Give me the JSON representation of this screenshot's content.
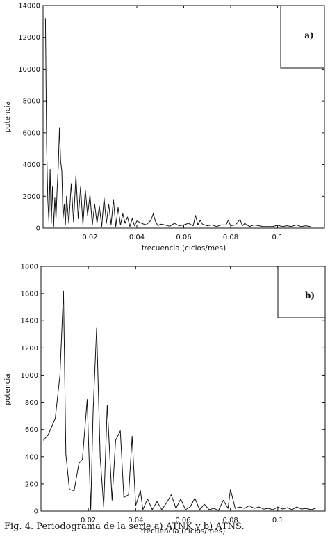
{
  "chart_data": [
    {
      "type": "line",
      "panel_label": "a)",
      "xlabel": "frecuencia (ciclos/mes)",
      "ylabel": "potencia",
      "xlim": [
        0,
        0.12
      ],
      "ylim": [
        0,
        14000
      ],
      "xticks": [
        0.02,
        0.04,
        0.06,
        0.08,
        0.1
      ],
      "xtick_labels": [
        "0.02",
        "0.04",
        "0.06",
        "0.08",
        "0.1"
      ],
      "yticks": [
        0,
        2000,
        4000,
        6000,
        8000,
        10000,
        12000,
        14000
      ],
      "ytick_labels": [
        "0",
        "2000",
        "4000",
        "6000",
        "8000",
        "10000",
        "12000",
        "14000"
      ],
      "grid": false,
      "legend": "top-right box",
      "series": [
        {
          "x": [
            0.001,
            0.0015,
            0.002,
            0.0025,
            0.003,
            0.0035,
            0.004,
            0.0045,
            0.005,
            0.0055,
            0.006,
            0.0065,
            0.007,
            0.0075,
            0.008,
            0.0085,
            0.009,
            0.0095,
            0.01,
            0.011,
            0.012,
            0.013,
            0.014,
            0.015,
            0.016,
            0.017,
            0.018,
            0.019,
            0.02,
            0.021,
            0.022,
            0.023,
            0.024,
            0.025,
            0.026,
            0.027,
            0.028,
            0.029,
            0.03,
            0.031,
            0.032,
            0.033,
            0.034,
            0.035,
            0.036,
            0.037,
            0.038,
            0.039,
            0.04,
            0.042,
            0.044,
            0.046,
            0.047,
            0.048,
            0.049,
            0.05,
            0.052,
            0.054,
            0.056,
            0.058,
            0.06,
            0.062,
            0.064,
            0.065,
            0.066,
            0.067,
            0.068,
            0.07,
            0.072,
            0.074,
            0.076,
            0.078,
            0.079,
            0.08,
            0.082,
            0.084,
            0.085,
            0.086,
            0.088,
            0.09,
            0.092,
            0.094,
            0.096,
            0.098,
            0.1,
            0.102,
            0.104,
            0.106,
            0.108,
            0.11,
            0.112,
            0.114
          ],
          "y": [
            13200,
            5200,
            1800,
            400,
            3700,
            300,
            2600,
            100,
            1900,
            600,
            2500,
            3900,
            6300,
            4200,
            3600,
            600,
            1500,
            200,
            2000,
            300,
            2800,
            400,
            3300,
            600,
            2600,
            200,
            2400,
            800,
            2100,
            200,
            1500,
            300,
            1400,
            100,
            1900,
            300,
            1500,
            200,
            1800,
            100,
            1300,
            200,
            900,
            300,
            700,
            100,
            600,
            150,
            450,
            300,
            200,
            500,
            900,
            400,
            150,
            250,
            200,
            120,
            300,
            150,
            200,
            300,
            150,
            800,
            200,
            500,
            250,
            150,
            200,
            100,
            200,
            200,
            500,
            150,
            200,
            550,
            150,
            300,
            100,
            200,
            150,
            100,
            100,
            100,
            180,
            100,
            150,
            100,
            200,
            100,
            150,
            100
          ]
        }
      ]
    },
    {
      "type": "line",
      "panel_label": "b)",
      "xlabel": "frecuencia (ciclos/mes)",
      "ylabel": "potencia",
      "xlim": [
        0,
        0.12
      ],
      "ylim": [
        0,
        1800
      ],
      "xticks": [
        0.02,
        0.04,
        0.06,
        0.08,
        0.1
      ],
      "xtick_labels": [
        "0.02",
        "0.04",
        "0.06",
        "0.08",
        "0.1"
      ],
      "yticks": [
        0,
        200,
        400,
        600,
        800,
        1000,
        1200,
        1400,
        1600,
        1800
      ],
      "ytick_labels": [
        "0",
        "200",
        "400",
        "600",
        "800",
        "1000",
        "1200",
        "1400",
        "1600",
        "1800"
      ],
      "grid": false,
      "legend": "top-right box",
      "series": [
        {
          "x": [
            0.001,
            0.003,
            0.006,
            0.008,
            0.0095,
            0.0105,
            0.012,
            0.014,
            0.016,
            0.0175,
            0.0195,
            0.021,
            0.022,
            0.0235,
            0.025,
            0.0265,
            0.028,
            0.03,
            0.0315,
            0.0335,
            0.035,
            0.037,
            0.0385,
            0.04,
            0.042,
            0.043,
            0.045,
            0.047,
            0.049,
            0.051,
            0.053,
            0.055,
            0.057,
            0.059,
            0.061,
            0.063,
            0.065,
            0.067,
            0.069,
            0.071,
            0.073,
            0.075,
            0.077,
            0.079,
            0.08,
            0.082,
            0.084,
            0.086,
            0.088,
            0.09,
            0.092,
            0.094,
            0.096,
            0.098,
            0.1,
            0.102,
            0.104,
            0.106,
            0.108,
            0.11,
            0.112,
            0.114,
            0.116
          ],
          "y": [
            520,
            560,
            680,
            1000,
            1620,
            420,
            160,
            150,
            350,
            380,
            820,
            10,
            730,
            1350,
            400,
            30,
            780,
            80,
            520,
            590,
            100,
            120,
            550,
            40,
            150,
            10,
            90,
            10,
            70,
            10,
            60,
            120,
            20,
            90,
            10,
            30,
            95,
            10,
            50,
            10,
            20,
            5,
            80,
            20,
            160,
            20,
            30,
            20,
            40,
            20,
            30,
            15,
            20,
            10,
            30,
            15,
            25,
            10,
            30,
            15,
            20,
            10,
            20
          ]
        }
      ]
    }
  ],
  "caption": "Fig. 4. Periodograma de la serie a) ATNK y b) ATNS."
}
